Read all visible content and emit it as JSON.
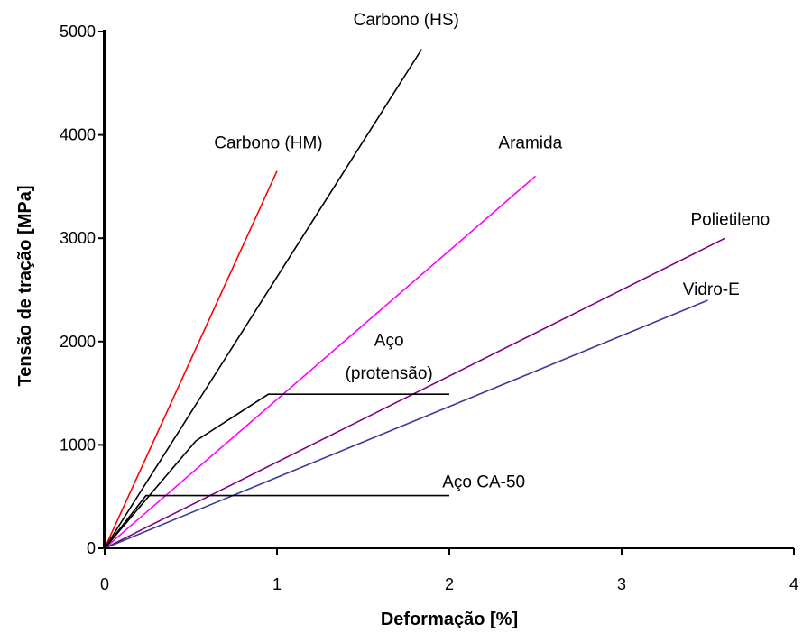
{
  "chart_data": {
    "type": "line",
    "title": "",
    "xlabel": "Deformação [%]",
    "ylabel": "Tensão de tração [MPa]",
    "xlim": [
      0,
      4
    ],
    "ylim": [
      0,
      5000
    ],
    "x_ticks": [
      "0",
      "1",
      "2",
      "3",
      "4"
    ],
    "y_ticks": [
      "0",
      "1000",
      "2000",
      "3000",
      "4000",
      "5000"
    ],
    "grid": false,
    "legend": "none",
    "series": [
      {
        "name": "Carbono (HM)",
        "color": "#ff0000",
        "points": [
          [
            0,
            0
          ],
          [
            1.0,
            3650
          ]
        ]
      },
      {
        "name": "Carbono (HS)",
        "color": "#000000",
        "points": [
          [
            0,
            0
          ],
          [
            1.84,
            4830
          ]
        ]
      },
      {
        "name": "Aramida",
        "color": "#ff00ff",
        "points": [
          [
            0,
            0
          ],
          [
            2.5,
            3600
          ]
        ]
      },
      {
        "name": "Polietileno",
        "color": "#800080",
        "points": [
          [
            0,
            0
          ],
          [
            3.6,
            3000
          ]
        ]
      },
      {
        "name": "Vidro-E",
        "color": "#3a3a9a",
        "points": [
          [
            0,
            0
          ],
          [
            3.5,
            2400
          ]
        ]
      },
      {
        "name": "Aço (protensão)",
        "color": "#000000",
        "points": [
          [
            0,
            0
          ],
          [
            0.53,
            1040
          ],
          [
            0.95,
            1490
          ],
          [
            2.0,
            1490
          ]
        ]
      },
      {
        "name": "Aço CA-50",
        "color": "#000000",
        "points": [
          [
            0,
            0
          ],
          [
            0.24,
            510
          ],
          [
            2.0,
            510
          ]
        ]
      }
    ],
    "labels": [
      {
        "text": "Carbono (HM)",
        "x": 0.95,
        "y": 3870
      },
      {
        "text": "Carbono (HS)",
        "x": 1.75,
        "y": 5060
      },
      {
        "text": "Aramida",
        "x": 2.47,
        "y": 3870
      },
      {
        "text": "Polietileno",
        "x": 3.63,
        "y": 3130
      },
      {
        "text": "Vidro-E",
        "x": 3.52,
        "y": 2450
      },
      {
        "text": "Aço",
        "x": 1.65,
        "y": 1960
      },
      {
        "text": "(protensão)",
        "x": 1.65,
        "y": 1640
      },
      {
        "text": "Aço CA-50",
        "x": 2.2,
        "y": 590
      }
    ]
  }
}
